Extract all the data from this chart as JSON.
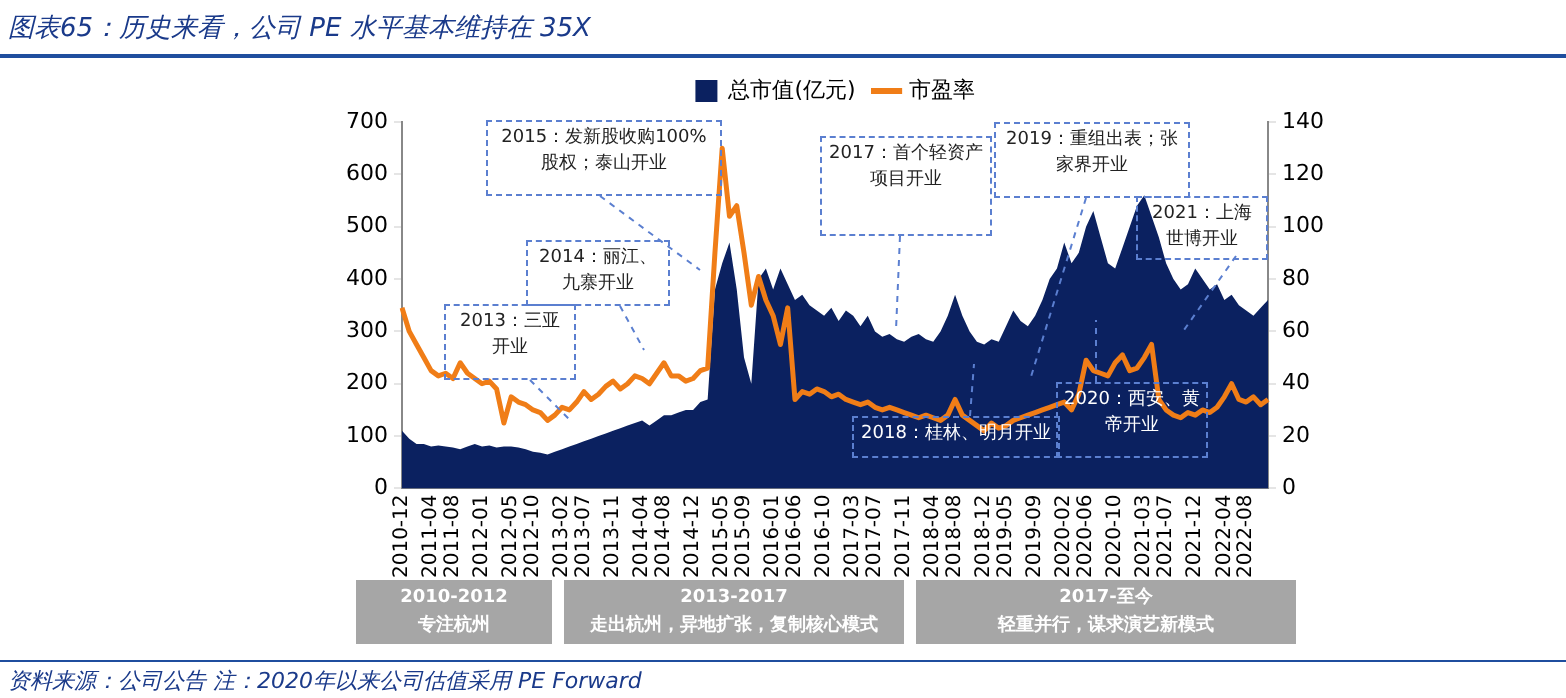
{
  "chart_data": {
    "type": "area",
    "title": "图表65：历史来看，公司 PE 水平基本维持在 35X",
    "categories": [
      "2010-12",
      null,
      null,
      null,
      "2011-04",
      null,
      null,
      "2011-08",
      null,
      null,
      null,
      "2012-01",
      null,
      null,
      null,
      "2012-05",
      null,
      null,
      "2012-10",
      null,
      null,
      null,
      "2013-02",
      null,
      null,
      "2013-07",
      null,
      null,
      null,
      "2013-11",
      null,
      null,
      null,
      "2014-04",
      null,
      null,
      "2014-08",
      null,
      null,
      null,
      "2014-12",
      null,
      null,
      null,
      "2015-05",
      null,
      null,
      "2015-09",
      null,
      null,
      null,
      "2016-01",
      null,
      null,
      "2016-06",
      null,
      null,
      null,
      "2016-10",
      null,
      null,
      null,
      "2017-03",
      null,
      null,
      "2017-07",
      null,
      null,
      null,
      "2017-11",
      null,
      null,
      null,
      "2018-04",
      null,
      null,
      "2018-08",
      null,
      null,
      null,
      "2018-12",
      null,
      null,
      "2019-05",
      null,
      null,
      null,
      "2019-09",
      null,
      null,
      null,
      "2020-02",
      null,
      null,
      "2020-06",
      null,
      null,
      null,
      "2020-10",
      null,
      null,
      null,
      "2021-03",
      null,
      null,
      "2021-07",
      null,
      null,
      null,
      "2021-12",
      null,
      null,
      null,
      "2022-04",
      null,
      null,
      "2022-08",
      null,
      null,
      null
    ],
    "series": [
      {
        "name": "总市值(亿元)",
        "color": "#0b2160",
        "values": [
          110,
          95,
          85,
          85,
          80,
          82,
          80,
          78,
          75,
          80,
          85,
          80,
          82,
          78,
          80,
          80,
          78,
          75,
          70,
          68,
          65,
          70,
          75,
          80,
          85,
          90,
          95,
          100,
          105,
          110,
          115,
          120,
          125,
          130,
          120,
          130,
          140,
          140,
          145,
          150,
          150,
          165,
          170,
          380,
          430,
          470,
          380,
          250,
          200,
          400,
          420,
          380,
          420,
          390,
          360,
          370,
          350,
          340,
          330,
          345,
          320,
          340,
          330,
          310,
          330,
          300,
          290,
          295,
          285,
          280,
          290,
          295,
          285,
          280,
          300,
          330,
          370,
          330,
          300,
          280,
          275,
          285,
          280,
          310,
          340,
          320,
          310,
          330,
          360,
          400,
          420,
          470,
          430,
          450,
          500,
          530,
          480,
          430,
          420,
          460,
          500,
          540,
          560,
          520,
          480,
          430,
          400,
          380,
          390,
          420,
          400,
          380,
          390,
          360,
          370,
          350,
          340,
          330,
          345,
          360
        ]
      },
      {
        "name": "市盈率",
        "type": "line",
        "axis": "y2",
        "color": "#f07d17",
        "values": [
          69,
          60,
          55,
          50,
          45,
          43,
          44,
          42,
          48,
          44,
          42,
          40,
          41,
          38,
          25,
          35,
          33,
          32,
          30,
          29,
          26,
          28,
          31,
          30,
          33,
          37,
          34,
          36,
          39,
          41,
          38,
          40,
          43,
          42,
          40,
          44,
          48,
          43,
          43,
          41,
          42,
          45,
          46,
          90,
          130,
          104,
          108,
          90,
          70,
          81,
          72,
          66,
          55,
          69,
          34,
          37,
          36,
          38,
          37,
          35,
          36,
          34,
          33,
          32,
          33,
          31,
          30,
          31,
          30,
          29,
          28,
          27,
          28,
          27,
          26,
          28,
          34,
          28,
          26,
          24,
          22,
          25,
          23,
          24,
          26,
          27,
          28,
          29,
          30,
          31,
          32,
          33,
          30,
          36,
          49,
          45,
          44,
          43,
          48,
          51,
          45,
          46,
          50,
          55,
          34,
          30,
          28,
          27,
          29,
          28,
          30,
          29,
          31,
          35,
          40,
          34,
          33,
          35,
          32,
          34
        ]
      }
    ],
    "ylim": [
      0,
      700
    ],
    "yticks": [
      0,
      100,
      200,
      300,
      400,
      500,
      600,
      700
    ],
    "y2lim": [
      0,
      140
    ],
    "y2ticks": [
      0,
      20,
      40,
      60,
      80,
      100,
      120,
      140
    ],
    "grid": false,
    "legend": "top",
    "annotations": [
      "2015：发新股收购100%股权；泰山开业",
      "2014：丽江、九寨开业",
      "2013：三亚开业",
      "2017：首个轻资产项目开业",
      "2019：重组出表；张家界开业",
      "2021：上海世博开业",
      "2018：桂林、明月开业",
      "2020：西安、黄帝开业",
      "2010-2012",
      "专注杭州",
      "2013-2017",
      "走出杭州，异地扩张，复制核心模式",
      "2017-至今",
      "轻重并行，谋求演艺新模式",
      "资料来源：公司公告",
      "注：2020年以来公司估值采用 PE Forward"
    ]
  }
}
